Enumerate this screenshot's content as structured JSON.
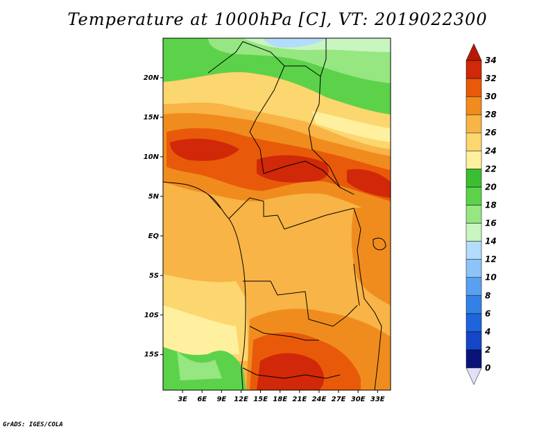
{
  "chart_data": {
    "type": "heatmap",
    "title": "Temperature at 1000hPa [C], VT: 2019022300",
    "xticks": [
      "3E",
      "6E",
      "9E",
      "12E",
      "15E",
      "18E",
      "21E",
      "24E",
      "27E",
      "30E",
      "33E"
    ],
    "yticks": [
      "20N",
      "15N",
      "10N",
      "5N",
      "EQ",
      "5S",
      "10S",
      "15S"
    ],
    "xlim": [
      0,
      35
    ],
    "ylim": [
      -19.5,
      25
    ],
    "units": "C",
    "colorbar": {
      "levels": [
        "0",
        "2",
        "4",
        "6",
        "8",
        "10",
        "12",
        "14",
        "16",
        "18",
        "20",
        "22",
        "24",
        "26",
        "28",
        "30",
        "32",
        "34"
      ],
      "colors": [
        "#0a1478",
        "#0c2fa0",
        "#1447c8",
        "#1e64dc",
        "#3282e6",
        "#5aa0f0",
        "#8cc3f8",
        "#b4dcfc",
        "#c8f5c0",
        "#96e682",
        "#5cd24a",
        "#3cbe32",
        "#fff0a0",
        "#fcd66e",
        "#f8b446",
        "#f08c1e",
        "#e85a0a",
        "#d02808",
        "#b41a06"
      ],
      "extend": "both"
    },
    "temperature_field": [
      {
        "lat": 23,
        "lon": 3,
        "value": 20
      },
      {
        "lat": 23,
        "lon": 15,
        "value": 20
      },
      {
        "lat": 23,
        "lon": 24,
        "value": 16
      },
      {
        "lat": 20,
        "lon": 6,
        "value": 24
      },
      {
        "lat": 20,
        "lon": 21,
        "value": 24
      },
      {
        "lat": 20,
        "lon": 30,
        "value": 20
      },
      {
        "lat": 15,
        "lon": 8,
        "value": 28
      },
      {
        "lat": 15,
        "lon": 24,
        "value": 26
      },
      {
        "lat": 15,
        "lon": 33,
        "value": 24
      },
      {
        "lat": 10,
        "lon": 9,
        "value": 32
      },
      {
        "lat": 9,
        "lon": 21,
        "value": 32
      },
      {
        "lat": 7,
        "lon": 16,
        "value": 32
      },
      {
        "lat": 5,
        "lon": 27,
        "value": 30
      },
      {
        "lat": 0,
        "lon": 10,
        "value": 28
      },
      {
        "lat": 0,
        "lon": 25,
        "value": 28
      },
      {
        "lat": -5,
        "lon": 5,
        "value": 26
      },
      {
        "lat": -10,
        "lon": 4,
        "value": 24
      },
      {
        "lat": -12,
        "lon": 18,
        "value": 28
      },
      {
        "lat": -16,
        "lon": 2,
        "value": 20
      },
      {
        "lat": -17,
        "lon": 19,
        "value": 32
      },
      {
        "lat": -18,
        "lon": 25,
        "value": 30
      }
    ]
  },
  "footer": {
    "credit": "GrADS: IGES/COLA"
  }
}
